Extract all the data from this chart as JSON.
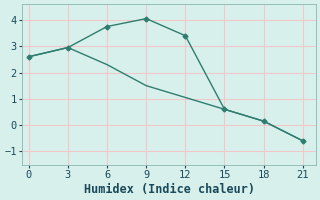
{
  "line1_x": [
    0,
    3,
    6,
    9,
    12,
    15,
    18,
    21
  ],
  "line1_y": [
    2.6,
    2.95,
    3.75,
    4.05,
    3.4,
    0.6,
    0.15,
    -0.6
  ],
  "line2_x": [
    0,
    3,
    6,
    9,
    12,
    15,
    18,
    21
  ],
  "line2_y": [
    2.6,
    2.95,
    2.3,
    1.5,
    1.05,
    0.6,
    0.15,
    -0.6
  ],
  "color": "#2e7d6e",
  "bg_color": "#d8f0ec",
  "grid_color": "#f0c8c8",
  "xlabel": "Humidex (Indice chaleur)",
  "xlim": [
    -0.5,
    22
  ],
  "ylim": [
    -1.5,
    4.6
  ],
  "xticks": [
    0,
    3,
    6,
    9,
    12,
    15,
    18,
    21
  ],
  "yticks": [
    -1,
    0,
    1,
    2,
    3,
    4
  ],
  "font_size": 8.5
}
